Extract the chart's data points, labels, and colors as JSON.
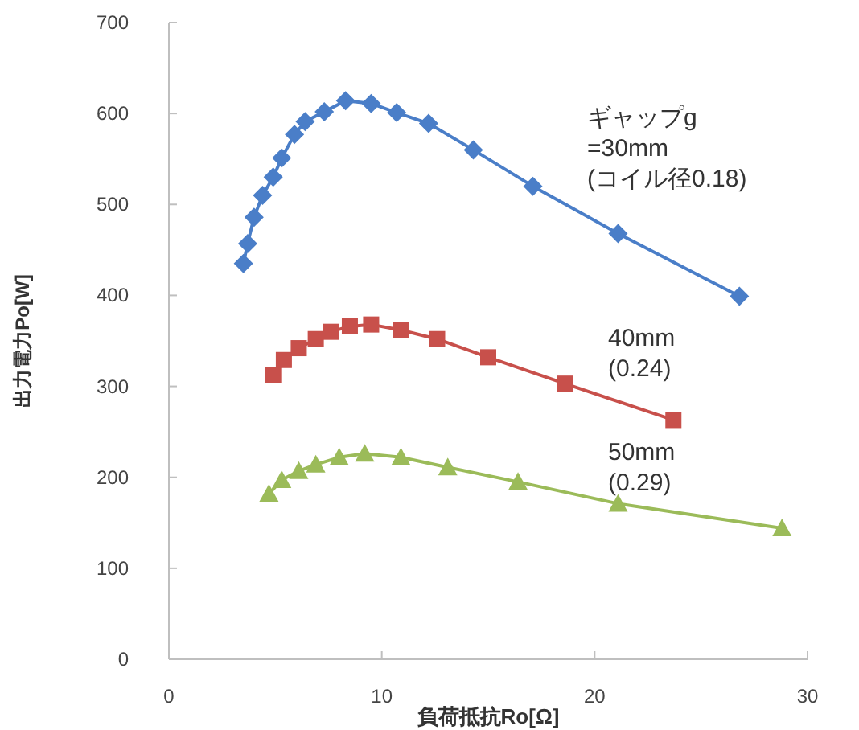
{
  "chart_data": {
    "type": "line",
    "xlabel": "負荷抵抗Ro[Ω]",
    "ylabel": "出力電力Po[W]",
    "xlim": [
      0,
      30
    ],
    "xticks": [
      0,
      10,
      20,
      30
    ],
    "ylim": [
      0,
      700
    ],
    "yticks": [
      0,
      100,
      200,
      300,
      400,
      500,
      600,
      700
    ],
    "grid": false,
    "series": [
      {
        "name": "ギャップg\n=30mm\n(コイル径0.18)",
        "color": "#4a7ec8",
        "marker": "diamond",
        "x": [
          3.5,
          3.7,
          4.0,
          4.4,
          4.9,
          5.3,
          5.9,
          6.4,
          7.3,
          8.3,
          9.5,
          10.7,
          12.2,
          14.3,
          17.1,
          21.1,
          26.8
        ],
        "values": [
          435,
          457,
          486,
          510,
          530,
          551,
          577,
          591,
          602,
          614,
          611,
          601,
          589,
          560,
          520,
          468,
          399
        ]
      },
      {
        "name": "40mm\n(0.24)",
        "color": "#c8504b",
        "marker": "square",
        "x": [
          4.9,
          5.4,
          6.1,
          6.9,
          7.6,
          8.5,
          9.5,
          10.9,
          12.6,
          15.0,
          18.6,
          23.7
        ],
        "values": [
          312,
          329,
          342,
          352,
          360,
          366,
          368,
          362,
          352,
          332,
          303,
          263
        ]
      },
      {
        "name": "50mm\n(0.29)",
        "color": "#9bbb59",
        "marker": "triangle",
        "x": [
          4.7,
          5.3,
          6.1,
          6.9,
          8.0,
          9.2,
          10.9,
          13.1,
          16.4,
          21.1,
          28.8
        ],
        "values": [
          182,
          197,
          207,
          214,
          222,
          226,
          222,
          211,
          195,
          171,
          144
        ]
      }
    ]
  }
}
